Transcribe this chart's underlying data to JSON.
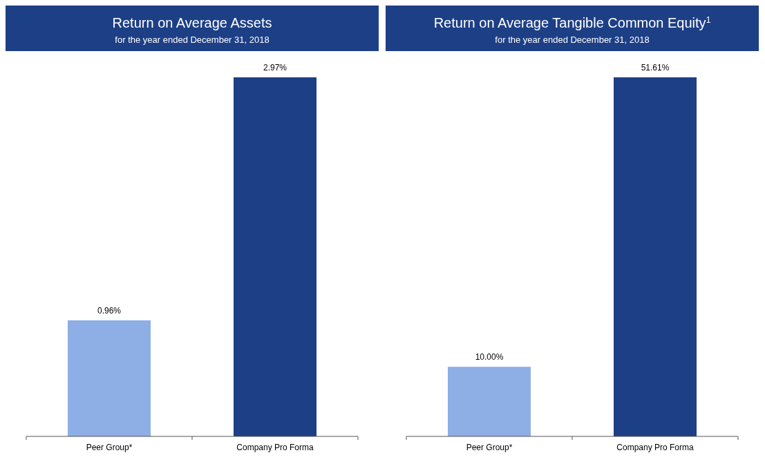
{
  "chart_data": [
    {
      "type": "bar",
      "title": "Return on Average Assets",
      "subtitle": "for the year ended December 31, 2018",
      "categories": [
        "Peer Group*",
        "Company Pro Forma"
      ],
      "values": [
        0.96,
        2.97
      ],
      "colors": [
        "#8eaee6",
        "#1d3f86"
      ],
      "value_labels": [
        "0.96%",
        "2.97%"
      ]
    },
    {
      "type": "bar",
      "title": "Return on Average Tangible Common Equity$^{1}$",
      "subtitle": "for the year ended December 31, 2018",
      "categories": [
        "Peer Group*",
        "Company Pro Forma"
      ],
      "values": [
        10.0,
        51.61
      ],
      "colors": [
        "#8eaee6",
        "#1d3f86"
      ],
      "value_labels": [
        "10.00%",
        "51.61%"
      ]
    }
  ]
}
